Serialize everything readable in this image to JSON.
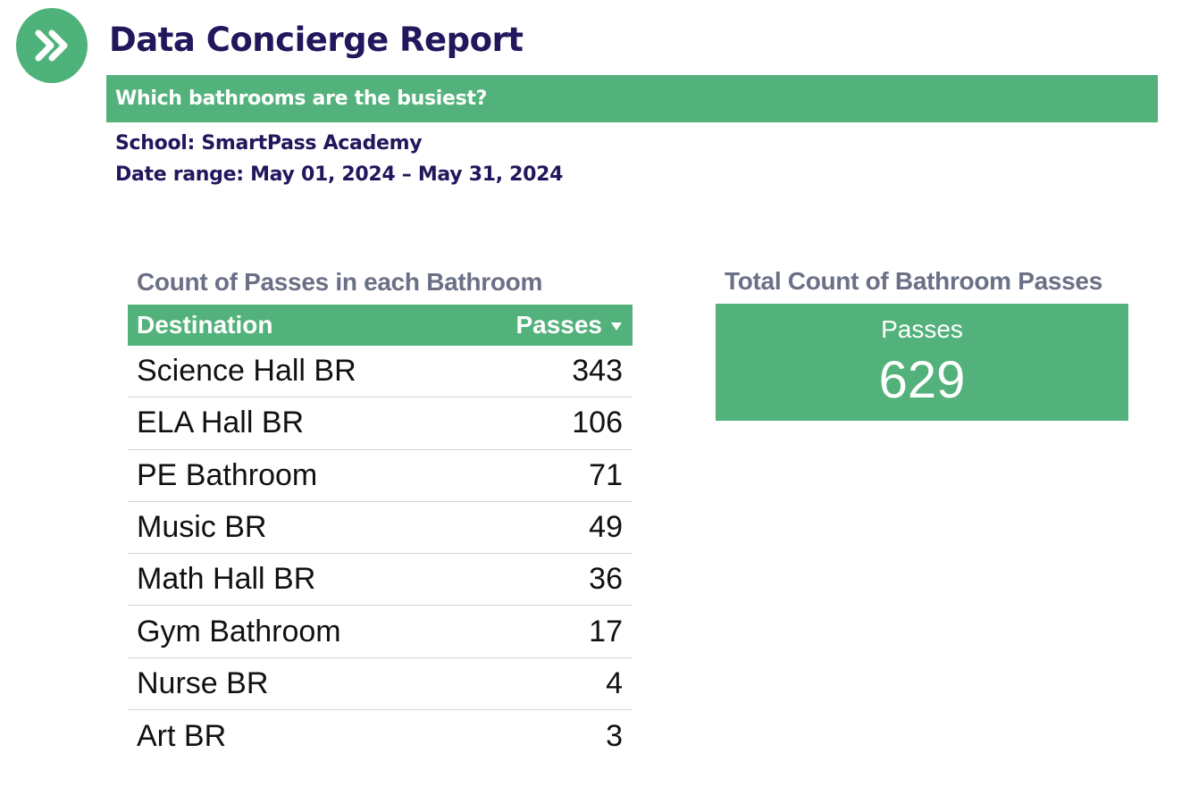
{
  "header": {
    "logo_icon": "double-chevron-right-icon",
    "title": "Data Concierge Report",
    "question": "Which bathrooms are the busiest?",
    "school": "School: SmartPass Academy",
    "date_range": "Date range: May 01, 2024 – May 31, 2024"
  },
  "table_panel": {
    "title": "Count of Passes in each Bathroom",
    "columns": {
      "destination": "Destination",
      "passes": "Passes",
      "sort_icon": "sort-descending-icon"
    },
    "rows": [
      {
        "destination": "Science Hall BR",
        "passes": "343"
      },
      {
        "destination": "ELA Hall BR",
        "passes": "106"
      },
      {
        "destination": "PE Bathroom",
        "passes": "71"
      },
      {
        "destination": "Music BR",
        "passes": "49"
      },
      {
        "destination": "Math Hall BR",
        "passes": "36"
      },
      {
        "destination": "Gym Bathroom",
        "passes": "17"
      },
      {
        "destination": "Nurse BR",
        "passes": "4"
      },
      {
        "destination": "Art BR",
        "passes": "3"
      }
    ]
  },
  "scorecard": {
    "title": "Total Count of Bathroom Passes",
    "label": "Passes",
    "value": "629"
  },
  "colors": {
    "brand_green": "#53b27b",
    "navy": "#21175c",
    "gray_title": "#6b7086"
  }
}
